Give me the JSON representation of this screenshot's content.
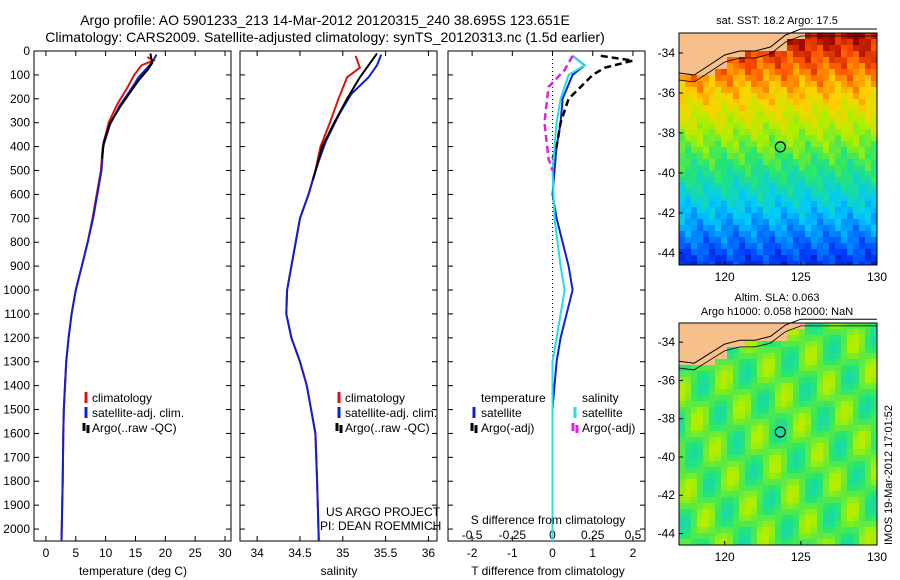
{
  "header": {
    "title_line1": "Argo profile: AO 5901233_213 14-Mar-2012 20120315_240 38.695S 123.651E",
    "title_line2": "Climatology: CARS2009. Satellite-adjusted climatology: synTS_20120313.nc (1.5d earlier)"
  },
  "colors": {
    "climatology": "#e01010",
    "satellite": "#1020d0",
    "argo": "#000000",
    "satellite_s": "#20e0e8",
    "argo_s": "#e020e0"
  },
  "panels": {
    "temp": {
      "xlabel": "temperature (deg C)"
    },
    "sal": {
      "xlabel": "salinity",
      "credit1": "US ARGO PROJECT",
      "credit2": "PI: DEAN ROEMMICH"
    },
    "diff": {
      "xlabel": "T difference from climatology",
      "top_label": "S difference from climatology",
      "leg_t_title": "temperature",
      "leg_s_title": "salinity",
      "leg_sat": "satellite",
      "leg_argo": "Argo(-adj)"
    }
  },
  "legend": {
    "climatology": "climatology",
    "satellite": "satellite-adj. clim.",
    "argo": "Argo(..raw -QC)"
  },
  "maps": {
    "sst": {
      "title": "sat. SST: 18.2  Argo: 17.5"
    },
    "sla": {
      "title1": "Altim. SLA: 0.063",
      "title2": "Argo h1000: 0.058  h2000: NaN"
    },
    "timestamp": "IMOS 19-Mar-2012 17:01:52"
  },
  "chart_data": [
    {
      "type": "line",
      "title": "",
      "xlabel": "temperature (deg C)",
      "ylabel": "",
      "xlim": [
        -2,
        31
      ],
      "ylim": [
        2050,
        0
      ],
      "xticks": [
        0,
        5,
        10,
        15,
        20,
        25,
        30
      ],
      "yticks": [
        0,
        100,
        200,
        300,
        400,
        500,
        600,
        700,
        800,
        900,
        1000,
        1100,
        1200,
        1300,
        1400,
        1500,
        1600,
        1700,
        1800,
        1900,
        2000
      ],
      "series": [
        {
          "name": "climatology",
          "color_key": "climatology",
          "points": [
            [
              17,
              25
            ],
            [
              18,
              40
            ],
            [
              16,
              60
            ],
            [
              14.8,
              100
            ],
            [
              13.5,
              160
            ],
            [
              12,
              220
            ],
            [
              10.5,
              300
            ],
            [
              9.5,
              400
            ],
            [
              9.2,
              500
            ],
            [
              8.5,
              600
            ],
            [
              7.8,
              700
            ],
            [
              7,
              800
            ],
            [
              6,
              900
            ],
            [
              5,
              1000
            ],
            [
              4.3,
              1100
            ],
            [
              3.8,
              1200
            ],
            [
              3.4,
              1300
            ],
            [
              3.2,
              1400
            ],
            [
              3,
              1500
            ],
            [
              2.9,
              1600
            ],
            [
              2.8,
              1800
            ],
            [
              2.6,
              2050
            ]
          ]
        },
        {
          "name": "satellite-adj. clim.",
          "color_key": "satellite",
          "points": [
            [
              18.5,
              15
            ],
            [
              18,
              40
            ],
            [
              17,
              70
            ],
            [
              15.5,
              110
            ],
            [
              14,
              170
            ],
            [
              12.3,
              230
            ],
            [
              10.7,
              310
            ],
            [
              9.6,
              400
            ],
            [
              9.3,
              500
            ],
            [
              8.6,
              600
            ],
            [
              7.9,
              700
            ],
            [
              7,
              800
            ],
            [
              6,
              900
            ],
            [
              5,
              1000
            ],
            [
              4.3,
              1100
            ],
            [
              3.8,
              1200
            ],
            [
              3.4,
              1300
            ],
            [
              3.2,
              1400
            ],
            [
              3,
              1500
            ],
            [
              2.9,
              1600
            ],
            [
              2.8,
              1800
            ],
            [
              2.6,
              2050
            ]
          ]
        },
        {
          "name": "Argo(..raw -QC)",
          "color_key": "argo",
          "points": [
            [
              17.5,
              10
            ],
            [
              17.8,
              50
            ],
            [
              17,
              80
            ],
            [
              15.6,
              120
            ],
            [
              14.2,
              170
            ],
            [
              12.5,
              230
            ],
            [
              10.8,
              300
            ],
            [
              9.7,
              380
            ],
            [
              9.4,
              450
            ]
          ]
        }
      ],
      "legend": [
        "climatology",
        "satellite-adj. clim.",
        "Argo(..raw -QC)"
      ]
    },
    {
      "type": "line",
      "title": "",
      "xlabel": "salinity",
      "ylabel": "",
      "xlim": [
        33.8,
        36.1
      ],
      "ylim": [
        2050,
        0
      ],
      "xticks": [
        34,
        34.5,
        35,
        35.5,
        36
      ],
      "series": [
        {
          "name": "climatology",
          "color_key": "climatology",
          "points": [
            [
              35.15,
              20
            ],
            [
              35.2,
              70
            ],
            [
              35.05,
              110
            ],
            [
              34.95,
              200
            ],
            [
              34.85,
              300
            ],
            [
              34.74,
              400
            ],
            [
              34.68,
              500
            ],
            [
              34.6,
              600
            ],
            [
              34.5,
              700
            ],
            [
              34.45,
              800
            ],
            [
              34.4,
              900
            ],
            [
              34.35,
              1000
            ],
            [
              34.34,
              1100
            ],
            [
              34.4,
              1200
            ],
            [
              34.5,
              1300
            ],
            [
              34.58,
              1400
            ],
            [
              34.63,
              1500
            ],
            [
              34.68,
              1600
            ],
            [
              34.7,
              1800
            ],
            [
              34.72,
              2050
            ]
          ]
        },
        {
          "name": "satellite-adj. clim.",
          "color_key": "satellite",
          "points": [
            [
              35.45,
              15
            ],
            [
              35.4,
              60
            ],
            [
              35.3,
              110
            ],
            [
              35.1,
              180
            ],
            [
              34.95,
              270
            ],
            [
              34.8,
              380
            ],
            [
              34.7,
              480
            ],
            [
              34.6,
              600
            ],
            [
              34.5,
              700
            ],
            [
              34.45,
              800
            ],
            [
              34.4,
              900
            ],
            [
              34.35,
              1000
            ],
            [
              34.34,
              1100
            ],
            [
              34.4,
              1200
            ],
            [
              34.5,
              1300
            ],
            [
              34.58,
              1400
            ],
            [
              34.63,
              1500
            ],
            [
              34.68,
              1600
            ],
            [
              34.7,
              1800
            ],
            [
              34.72,
              2050
            ]
          ]
        },
        {
          "name": "Argo(..raw -QC)",
          "color_key": "argo",
          "points": [
            [
              35.4,
              10
            ],
            [
              35.3,
              60
            ],
            [
              35.2,
              110
            ],
            [
              35.05,
              200
            ],
            [
              34.9,
              300
            ],
            [
              34.76,
              400
            ],
            [
              34.7,
              480
            ],
            [
              34.65,
              540
            ]
          ]
        }
      ],
      "legend": [
        "climatology",
        "satellite-adj. clim.",
        "Argo(..raw -QC)"
      ]
    },
    {
      "type": "line",
      "title": "S difference from climatology",
      "xlabel": "T difference from climatology",
      "ylabel": "",
      "xlim": [
        -2.6,
        2.3
      ],
      "ylim": [
        2050,
        0
      ],
      "xticks": [
        -2,
        -1,
        0,
        1,
        2
      ],
      "top_ticks": [
        "-0.5",
        "-0.25",
        "0",
        "0.25",
        "0.5"
      ],
      "series": [
        {
          "name": "satellite",
          "group": "temperature",
          "color_key": "satellite",
          "points": [
            [
              0.5,
              20
            ],
            [
              0.8,
              60
            ],
            [
              0.5,
              100
            ],
            [
              0.25,
              200
            ],
            [
              0.2,
              300
            ],
            [
              0.1,
              400
            ],
            [
              0.05,
              500
            ],
            [
              0,
              600
            ],
            [
              0.1,
              700
            ],
            [
              0.25,
              800
            ],
            [
              0.4,
              900
            ],
            [
              0.5,
              1000
            ],
            [
              0.35,
              1100
            ],
            [
              0.2,
              1200
            ],
            [
              0.1,
              1300
            ],
            [
              0.05,
              1400
            ],
            [
              0,
              1500
            ],
            [
              0,
              2050
            ]
          ]
        },
        {
          "name": "Argo(-adj)",
          "group": "temperature",
          "color_key": "argo",
          "dash": "dash",
          "points": [
            [
              1.2,
              20
            ],
            [
              2,
              40
            ],
            [
              1.3,
              70
            ],
            [
              1,
              100
            ],
            [
              0.7,
              150
            ],
            [
              0.4,
              200
            ],
            [
              0.2,
              300
            ],
            [
              0.1,
              400
            ],
            [
              0,
              450
            ]
          ]
        },
        {
          "name": "satellite",
          "group": "salinity",
          "color_key": "satellite_s",
          "points": [
            [
              0.5,
              20
            ],
            [
              0.8,
              60
            ],
            [
              0.4,
              100
            ],
            [
              0.2,
              200
            ],
            [
              0.1,
              300
            ],
            [
              0.05,
              400
            ],
            [
              0,
              500
            ],
            [
              0.05,
              700
            ],
            [
              0.2,
              900
            ],
            [
              0.3,
              1000
            ],
            [
              0.2,
              1100
            ],
            [
              0.1,
              1200
            ],
            [
              0,
              1300
            ],
            [
              0,
              2050
            ]
          ]
        },
        {
          "name": "Argo(-adj)",
          "group": "salinity",
          "color_key": "argo_s",
          "dash": "dash",
          "points": [
            [
              0.5,
              20
            ],
            [
              0.3,
              80
            ],
            [
              -0.1,
              150
            ],
            [
              -0.2,
              300
            ],
            [
              -0.1,
              450
            ],
            [
              0,
              500
            ]
          ]
        }
      ]
    }
  ]
}
